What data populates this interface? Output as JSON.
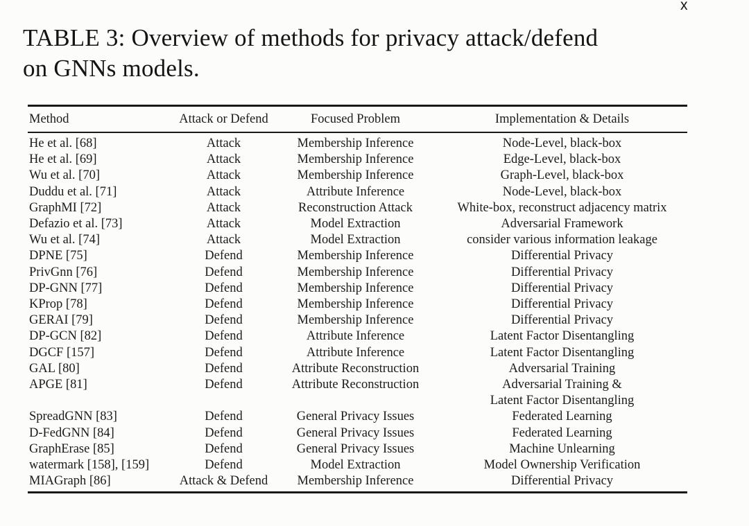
{
  "page_mark": "x",
  "caption": {
    "lines": [
      "TABLE 3: Overview of methods for privacy attack/defend",
      "on GNNs models."
    ]
  },
  "table": {
    "columns": [
      "Method",
      "Attack or Defend",
      "Focused Problem",
      "Implementation & Details"
    ],
    "column_keys": [
      "method",
      "attack-or-defend",
      "focused-problem",
      "implementation-details"
    ],
    "rows": [
      [
        "He et al. [68]",
        "Attack",
        "Membership Inference",
        "Node-Level, black-box"
      ],
      [
        "He et al. [69]",
        "Attack",
        "Membership Inference",
        "Edge-Level, black-box"
      ],
      [
        "Wu et al. [70]",
        "Attack",
        "Membership Inference",
        "Graph-Level, black-box"
      ],
      [
        "Duddu et al. [71]",
        "Attack",
        "Attribute Inference",
        "Node-Level, black-box"
      ],
      [
        "GraphMI [72]",
        "Attack",
        "Reconstruction Attack",
        "White-box, reconstruct adjacency matrix"
      ],
      [
        "Defazio et al. [73]",
        "Attack",
        "Model Extraction",
        "Adversarial Framework"
      ],
      [
        "Wu et al. [74]",
        "Attack",
        "Model Extraction",
        "consider various information leakage"
      ],
      [
        "DPNE [75]",
        "Defend",
        "Membership Inference",
        "Differential Privacy"
      ],
      [
        "PrivGnn [76]",
        "Defend",
        "Membership Inference",
        "Differential Privacy"
      ],
      [
        "DP-GNN [77]",
        "Defend",
        "Membership Inference",
        "Differential Privacy"
      ],
      [
        "KProp [78]",
        "Defend",
        "Membership Inference",
        "Differential Privacy"
      ],
      [
        "GERAI [79]",
        "Defend",
        "Membership Inference",
        "Differential Privacy"
      ],
      [
        "DP-GCN [82]",
        "Defend",
        "Attribute Inference",
        "Latent Factor Disentangling"
      ],
      [
        "DGCF [157]",
        "Defend",
        "Attribute Inference",
        "Latent Factor Disentangling"
      ],
      [
        "GAL [80]",
        "Defend",
        "Attribute Reconstruction",
        "Adversarial Training"
      ],
      [
        "APGE [81]",
        "Defend",
        "Attribute Reconstruction",
        "Adversarial Training &\nLatent Factor Disentangling"
      ],
      [
        "SpreadGNN [83]",
        "Defend",
        "General Privacy Issues",
        "Federated Learning"
      ],
      [
        "D-FedGNN [84]",
        "Defend",
        "General Privacy Issues",
        "Federated Learning"
      ],
      [
        "GraphErase [85]",
        "Defend",
        "General Privacy Issues",
        "Machine Unlearning"
      ],
      [
        "watermark [158], [159]",
        "Defend",
        "Model Extraction",
        "Model Ownership Verification"
      ],
      [
        "MIAGraph [86]",
        "Attack & Defend",
        "Membership Inference",
        "Differential Privacy"
      ]
    ]
  },
  "colors": {
    "background": "#fcfcfa",
    "text": "#1a1a1a",
    "rule": "#181818"
  }
}
